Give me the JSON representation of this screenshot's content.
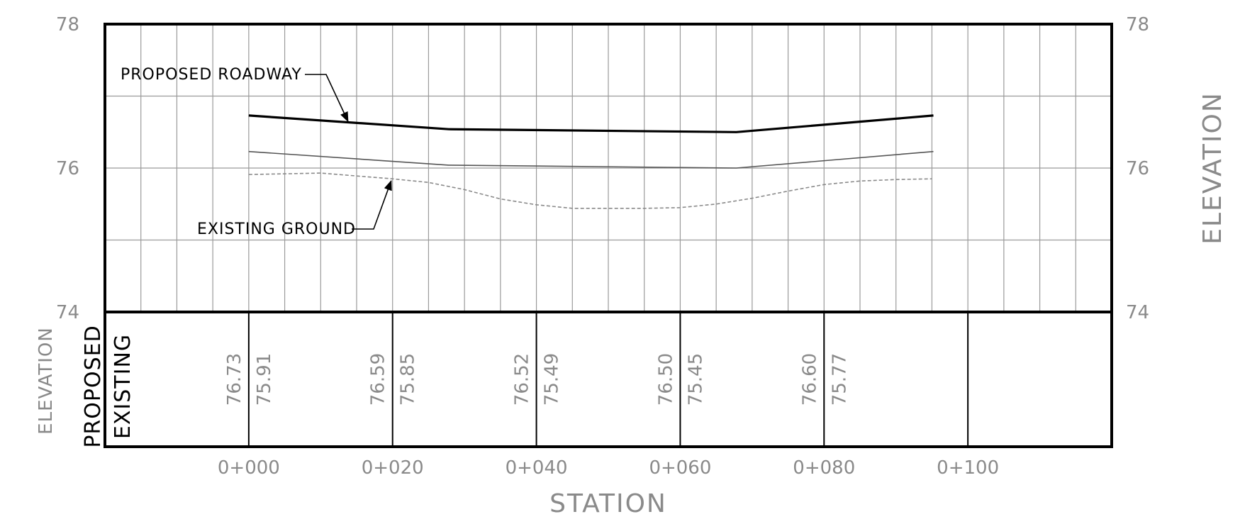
{
  "chart_data": {
    "type": "line",
    "xlabel": "STATION",
    "ylabel": "ELEVATION",
    "ylim": [
      74,
      78
    ],
    "yticks": [
      "74",
      "76",
      "78"
    ],
    "xlim": [
      -20,
      120
    ],
    "xticks": [
      {
        "value": 0,
        "label": "0+000"
      },
      {
        "value": 20,
        "label": "0+020"
      },
      {
        "value": 40,
        "label": "0+040"
      },
      {
        "value": 60,
        "label": "0+060"
      },
      {
        "value": 80,
        "label": "0+080"
      },
      {
        "value": 100,
        "label": "0+100"
      }
    ],
    "grid": true,
    "series": [
      {
        "name": "PROPOSED ROADWAY",
        "style": "bold",
        "color": "#000000",
        "x": [
          0,
          27.8,
          67.8,
          95.2
        ],
        "y": [
          76.73,
          76.54,
          76.5,
          76.73
        ]
      },
      {
        "style": "thin",
        "color": "#555555",
        "x": [
          0,
          27.8,
          67.8,
          95.2
        ],
        "y": [
          76.23,
          76.04,
          76.0,
          76.23
        ]
      },
      {
        "name": "EXISTING GROUND",
        "style": "dashed",
        "color": "#8a8a8a",
        "x": [
          0,
          10,
          20,
          25,
          30,
          35,
          40,
          45,
          50,
          55,
          60,
          65,
          70,
          75,
          80,
          85,
          90,
          95
        ],
        "y": [
          75.91,
          75.93,
          75.85,
          75.8,
          75.7,
          75.57,
          75.49,
          75.44,
          75.44,
          75.44,
          75.45,
          75.5,
          75.58,
          75.68,
          75.77,
          75.82,
          75.84,
          75.85
        ]
      }
    ],
    "band": {
      "rows": [
        "PROPOSED",
        "EXISTING"
      ],
      "side_label": "ELEVATION",
      "stations": [
        0,
        20,
        40,
        60,
        80
      ],
      "proposed": [
        "76.73",
        "76.59",
        "76.52",
        "76.50",
        "76.60"
      ],
      "existing": [
        "75.91",
        "75.85",
        "75.49",
        "75.45",
        "75.77"
      ]
    },
    "callouts": [
      {
        "label": "PROPOSED ROADWAY"
      },
      {
        "label": "EXISTING GROUND"
      }
    ]
  }
}
